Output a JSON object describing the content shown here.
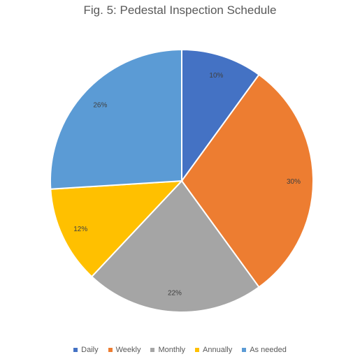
{
  "chart_data": {
    "type": "pie",
    "title": "Fig. 5: Pedestal Inspection Schedule",
    "categories": [
      "Daily",
      "Weekly",
      "Monthly",
      "Annually",
      "As needed"
    ],
    "values": [
      10,
      30,
      22,
      12,
      26
    ],
    "labels": [
      "10%",
      "30%",
      "22%",
      "12%",
      "26%"
    ],
    "colors": [
      "#4472C4",
      "#ED7D31",
      "#A5A5A5",
      "#FFC000",
      "#5B9BD5"
    ],
    "legend": "bottom",
    "start_angle": "12 o'clock, clockwise"
  }
}
